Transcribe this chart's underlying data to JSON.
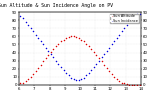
{
  "title": "Sun Altitude & Sun Incidence Angle on PV",
  "background_color": "#ffffff",
  "plot_bg_color": "#ffffff",
  "grid_color": "#aaaaaa",
  "xlim": [
    0,
    96
  ],
  "ylim": [
    0,
    90
  ],
  "altitude_color": "#dd0000",
  "incidence_color": "#0000dd",
  "legend_entries": [
    "Sun Altitude",
    "Sun Incidence"
  ],
  "altitude_x": [
    1,
    3,
    5,
    7,
    9,
    11,
    13,
    15,
    17,
    19,
    21,
    23,
    25,
    27,
    29,
    31,
    33,
    35,
    37,
    39,
    41,
    43,
    45,
    47,
    49,
    51,
    53,
    55,
    57,
    59,
    61,
    63,
    65,
    67,
    69,
    71,
    73,
    75,
    77,
    79,
    81,
    83,
    85,
    87,
    89,
    91,
    93,
    95
  ],
  "altitude_y": [
    2,
    3,
    5,
    7,
    10,
    13,
    17,
    21,
    25,
    29,
    33,
    37,
    41,
    45,
    48,
    51,
    54,
    56,
    58,
    59,
    60,
    60,
    59,
    58,
    56,
    54,
    51,
    48,
    45,
    41,
    37,
    33,
    29,
    25,
    21,
    17,
    13,
    10,
    7,
    5,
    3,
    2,
    1,
    0,
    0,
    0,
    0,
    0
  ],
  "incidence_x": [
    1,
    3,
    5,
    7,
    9,
    11,
    13,
    15,
    17,
    19,
    21,
    23,
    25,
    27,
    29,
    31,
    33,
    35,
    37,
    39,
    41,
    43,
    45,
    47,
    49,
    51,
    53,
    55,
    57,
    59,
    61,
    63,
    65,
    67,
    69,
    71,
    73,
    75,
    77,
    79,
    81,
    83,
    85,
    87,
    89,
    91,
    93,
    95
  ],
  "incidence_y": [
    85,
    82,
    78,
    74,
    70,
    66,
    62,
    58,
    54,
    50,
    46,
    42,
    38,
    34,
    30,
    26,
    22,
    18,
    15,
    12,
    9,
    7,
    6,
    6,
    7,
    9,
    12,
    15,
    18,
    22,
    26,
    30,
    34,
    38,
    42,
    46,
    50,
    54,
    58,
    62,
    66,
    70,
    74,
    78,
    82,
    85,
    87,
    88
  ],
  "xticks": [
    0,
    12,
    24,
    36,
    48,
    60,
    72,
    84,
    96
  ],
  "xticklabels": [
    "6",
    "7",
    "8",
    "9",
    "10",
    "11",
    "12",
    "13",
    "14"
  ],
  "yticks": [
    0,
    10,
    20,
    30,
    40,
    50,
    60,
    70,
    80,
    90
  ],
  "marker_size": 1.2,
  "title_fontsize": 3.5,
  "tick_fontsize": 2.8,
  "legend_fontsize": 2.5
}
